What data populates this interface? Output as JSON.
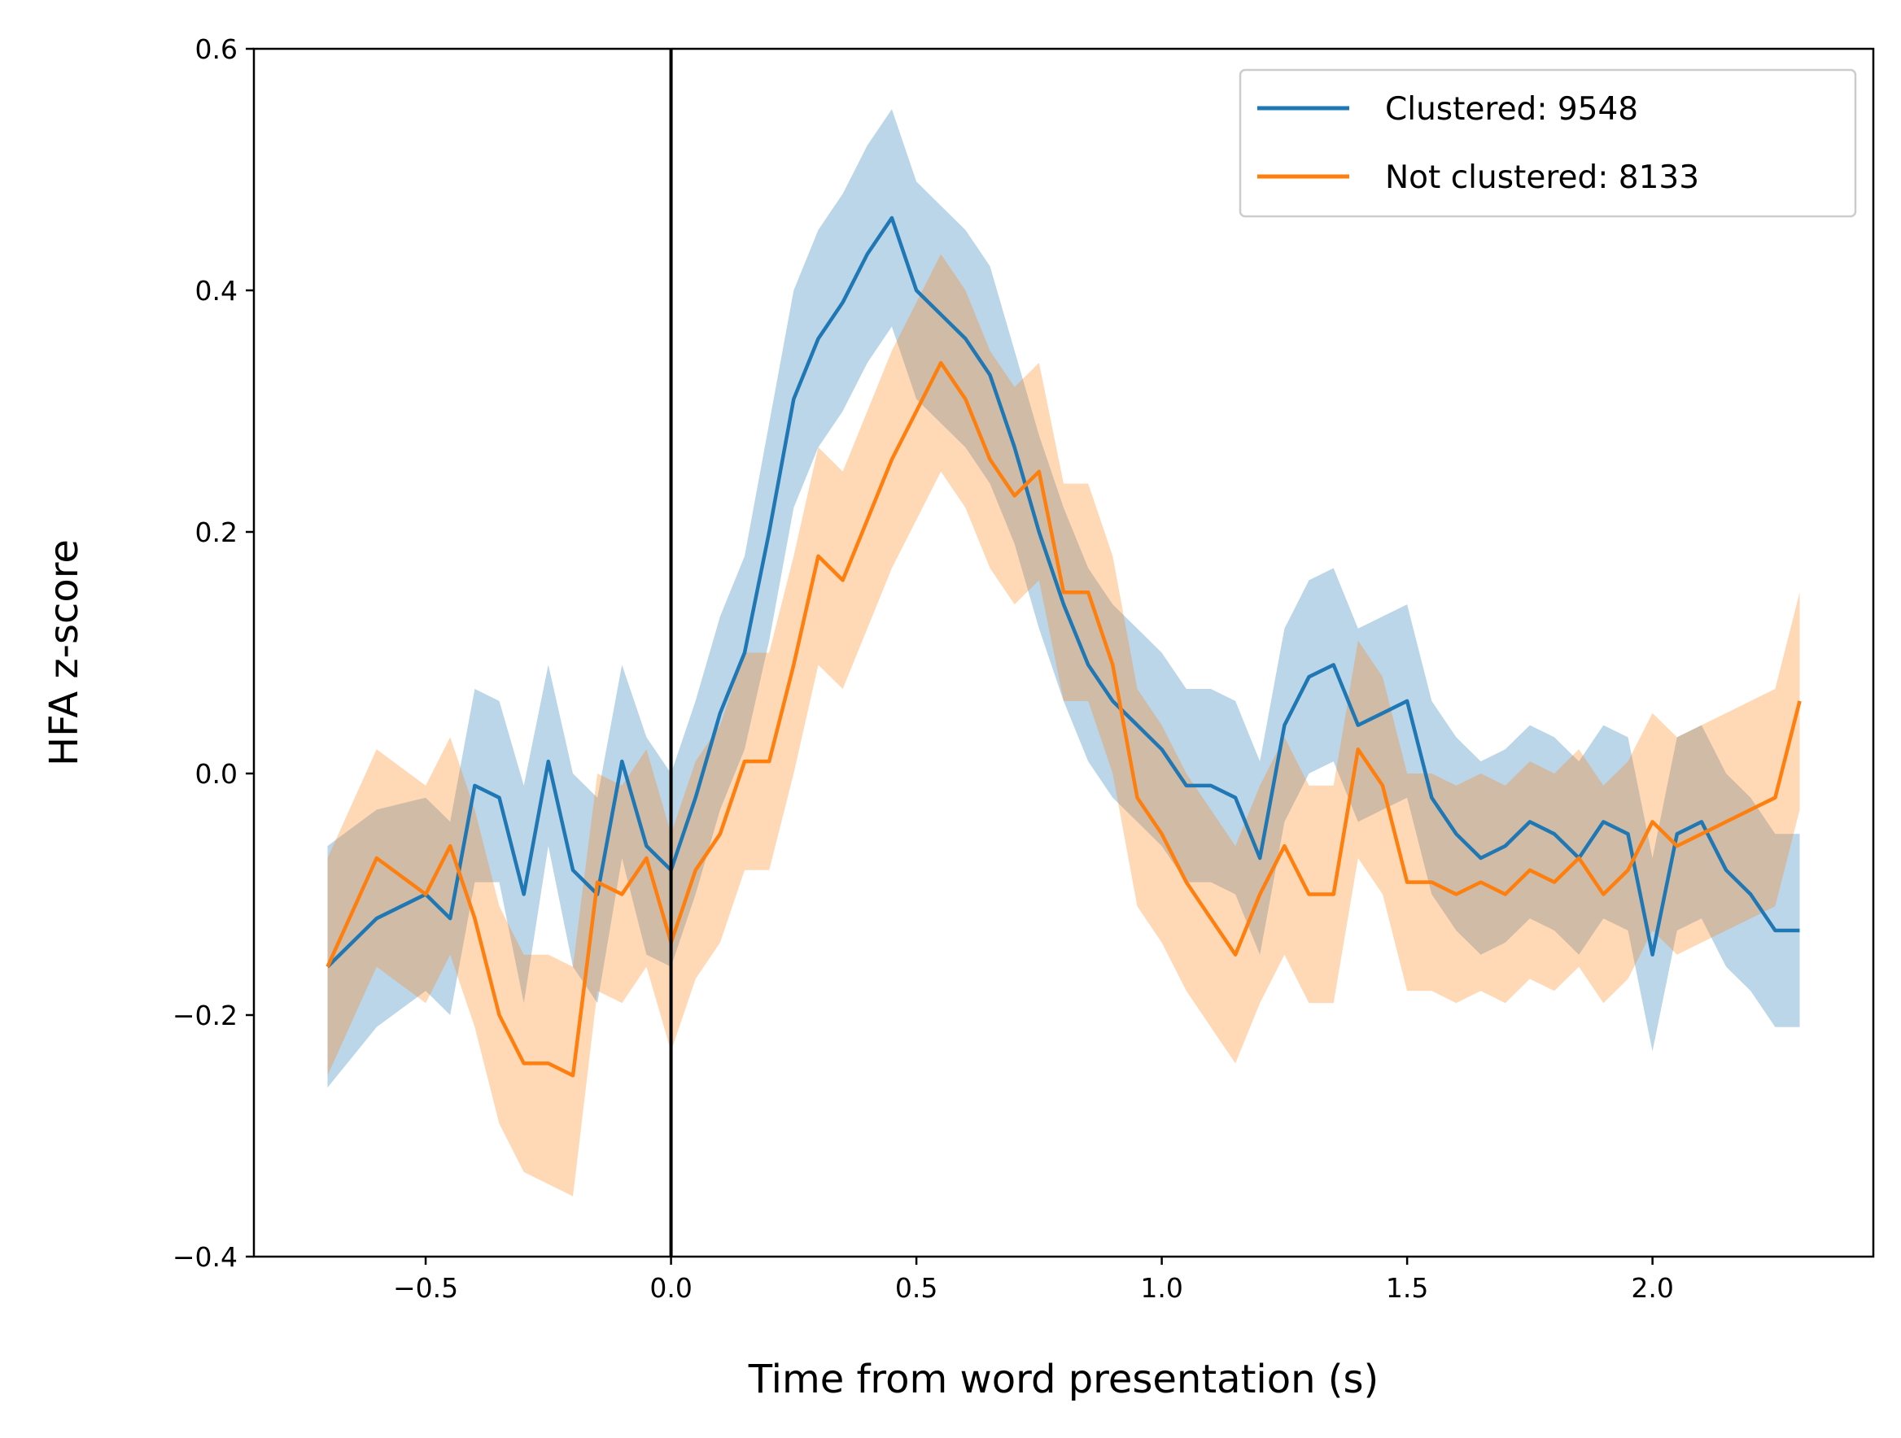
{
  "chart_data": {
    "type": "line",
    "title": "",
    "xlabel": "Time from word presentation (s)",
    "ylabel": "HFA z-score",
    "xlim": [
      -0.85,
      2.45
    ],
    "ylim": [
      -0.4,
      0.6
    ],
    "xticks": [
      -0.5,
      0.0,
      0.5,
      1.0,
      1.5,
      2.0
    ],
    "xtick_labels": [
      "−0.5",
      "0.0",
      "0.5",
      "1.0",
      "1.5",
      "2.0"
    ],
    "yticks": [
      -0.4,
      -0.2,
      0.0,
      0.2,
      0.4,
      0.6
    ],
    "ytick_labels": [
      "−0.4",
      "−0.2",
      "0.0",
      "0.2",
      "0.4",
      "0.6"
    ],
    "grid": false,
    "legend_position": "top-right",
    "vertical_line": {
      "x": 0.0,
      "color": "#000000"
    },
    "x": [
      -0.7,
      -0.6,
      -0.5,
      -0.45,
      -0.4,
      -0.35,
      -0.3,
      -0.25,
      -0.2,
      -0.15,
      -0.1,
      -0.05,
      0.0,
      0.05,
      0.1,
      0.15,
      0.2,
      0.25,
      0.3,
      0.35,
      0.4,
      0.45,
      0.5,
      0.55,
      0.6,
      0.65,
      0.7,
      0.75,
      0.8,
      0.85,
      0.9,
      0.95,
      1.0,
      1.05,
      1.1,
      1.15,
      1.2,
      1.25,
      1.3,
      1.35,
      1.4,
      1.45,
      1.5,
      1.55,
      1.6,
      1.65,
      1.7,
      1.75,
      1.8,
      1.85,
      1.9,
      1.95,
      2.0,
      2.05,
      2.1,
      2.15,
      2.2,
      2.25,
      2.3
    ],
    "series": [
      {
        "name": "Clustered: 9548",
        "color": "#1f77b4",
        "band_opacity": 0.3,
        "values": [
          -0.16,
          -0.12,
          -0.1,
          -0.12,
          -0.01,
          -0.02,
          -0.1,
          0.01,
          -0.08,
          -0.1,
          0.01,
          -0.06,
          -0.08,
          -0.02,
          0.05,
          0.1,
          0.2,
          0.31,
          0.36,
          0.39,
          0.43,
          0.46,
          0.4,
          0.38,
          0.36,
          0.33,
          0.27,
          0.2,
          0.14,
          0.09,
          0.06,
          0.04,
          0.02,
          -0.01,
          -0.01,
          -0.02,
          -0.07,
          0.04,
          0.08,
          0.09,
          0.04,
          0.05,
          0.06,
          -0.02,
          -0.05,
          -0.07,
          -0.06,
          -0.04,
          -0.05,
          -0.07,
          -0.04,
          -0.05,
          -0.15,
          -0.05,
          -0.04,
          -0.08,
          -0.1,
          -0.13,
          -0.13
        ],
        "lower": [
          -0.26,
          -0.21,
          -0.18,
          -0.2,
          -0.09,
          -0.09,
          -0.19,
          -0.06,
          -0.16,
          -0.19,
          -0.07,
          -0.15,
          -0.16,
          -0.1,
          -0.03,
          0.02,
          0.11,
          0.22,
          0.27,
          0.3,
          0.34,
          0.37,
          0.31,
          0.29,
          0.27,
          0.24,
          0.19,
          0.12,
          0.06,
          0.01,
          -0.02,
          -0.04,
          -0.06,
          -0.09,
          -0.09,
          -0.1,
          -0.15,
          -0.04,
          0.0,
          0.01,
          -0.04,
          -0.03,
          -0.02,
          -0.1,
          -0.13,
          -0.15,
          -0.14,
          -0.12,
          -0.13,
          -0.15,
          -0.12,
          -0.13,
          -0.23,
          -0.13,
          -0.12,
          -0.16,
          -0.18,
          -0.21,
          -0.21
        ],
        "upper": [
          -0.06,
          -0.03,
          -0.02,
          -0.04,
          0.07,
          0.06,
          -0.01,
          0.09,
          0.0,
          -0.02,
          0.09,
          0.03,
          0.0,
          0.06,
          0.13,
          0.18,
          0.29,
          0.4,
          0.45,
          0.48,
          0.52,
          0.55,
          0.49,
          0.47,
          0.45,
          0.42,
          0.35,
          0.28,
          0.22,
          0.17,
          0.14,
          0.12,
          0.1,
          0.07,
          0.07,
          0.06,
          0.01,
          0.12,
          0.16,
          0.17,
          0.12,
          0.13,
          0.14,
          0.06,
          0.03,
          0.01,
          0.02,
          0.04,
          0.03,
          0.01,
          0.04,
          0.03,
          -0.07,
          0.03,
          0.04,
          0.0,
          -0.02,
          -0.05,
          -0.05
        ]
      },
      {
        "name": "Not clustered: 8133",
        "color": "#ff7f0e",
        "band_opacity": 0.3,
        "values": [
          -0.16,
          -0.07,
          -0.1,
          -0.06,
          -0.12,
          -0.2,
          -0.24,
          -0.24,
          -0.25,
          -0.09,
          -0.1,
          -0.07,
          -0.14,
          -0.08,
          -0.05,
          0.01,
          0.01,
          0.09,
          0.18,
          0.16,
          0.21,
          0.26,
          0.3,
          0.34,
          0.31,
          0.26,
          0.23,
          0.25,
          0.15,
          0.15,
          0.09,
          -0.02,
          -0.05,
          -0.09,
          -0.12,
          -0.15,
          -0.1,
          -0.06,
          -0.1,
          -0.1,
          0.02,
          -0.01,
          -0.09,
          -0.09,
          -0.1,
          -0.09,
          -0.1,
          -0.08,
          -0.09,
          -0.07,
          -0.1,
          -0.08,
          -0.04,
          -0.06,
          -0.05,
          -0.04,
          -0.03,
          -0.02,
          0.06
        ],
        "lower": [
          -0.25,
          -0.16,
          -0.19,
          -0.15,
          -0.21,
          -0.29,
          -0.33,
          -0.34,
          -0.35,
          -0.18,
          -0.19,
          -0.16,
          -0.23,
          -0.17,
          -0.14,
          -0.08,
          -0.08,
          0.0,
          0.09,
          0.07,
          0.12,
          0.17,
          0.21,
          0.25,
          0.22,
          0.17,
          0.14,
          0.16,
          0.06,
          0.06,
          0.0,
          -0.11,
          -0.14,
          -0.18,
          -0.21,
          -0.24,
          -0.19,
          -0.15,
          -0.19,
          -0.19,
          -0.07,
          -0.1,
          -0.18,
          -0.18,
          -0.19,
          -0.18,
          -0.19,
          -0.17,
          -0.18,
          -0.16,
          -0.19,
          -0.17,
          -0.13,
          -0.15,
          -0.14,
          -0.13,
          -0.12,
          -0.11,
          -0.03
        ],
        "upper": [
          -0.07,
          0.02,
          -0.01,
          0.03,
          -0.03,
          -0.11,
          -0.15,
          -0.15,
          -0.16,
          0.0,
          -0.01,
          0.02,
          -0.05,
          0.01,
          0.04,
          0.1,
          0.1,
          0.18,
          0.27,
          0.25,
          0.3,
          0.35,
          0.39,
          0.43,
          0.4,
          0.35,
          0.32,
          0.34,
          0.24,
          0.24,
          0.18,
          0.07,
          0.04,
          0.0,
          -0.03,
          -0.06,
          -0.01,
          0.03,
          -0.01,
          -0.01,
          0.11,
          0.08,
          0.0,
          0.0,
          -0.01,
          0.0,
          -0.01,
          0.01,
          0.0,
          0.02,
          -0.01,
          0.01,
          0.05,
          0.03,
          0.04,
          0.05,
          0.06,
          0.07,
          0.15
        ]
      }
    ]
  }
}
